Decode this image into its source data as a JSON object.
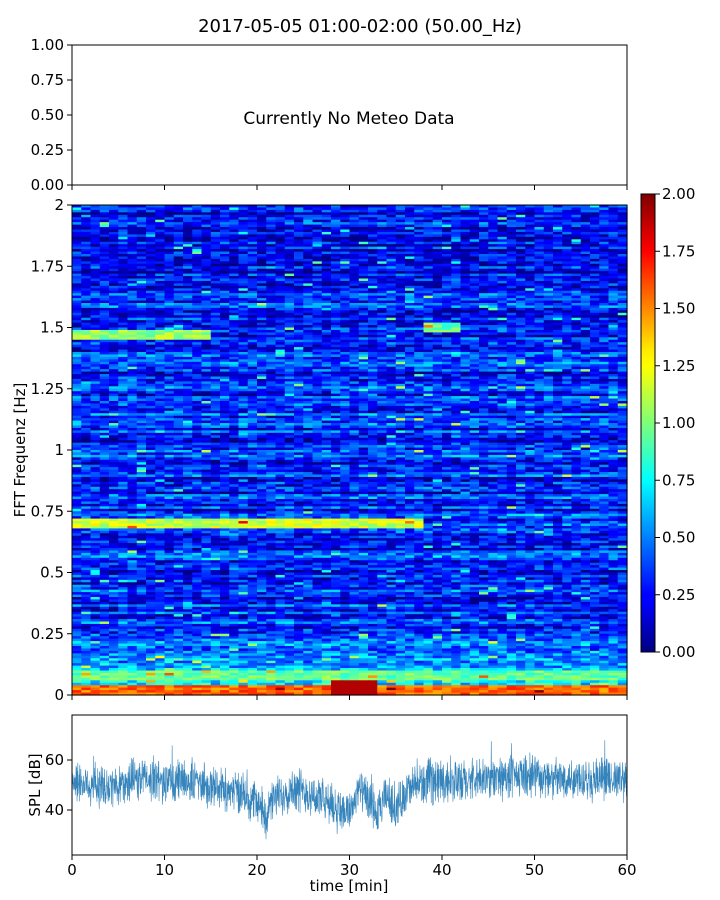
{
  "chart_data": [
    {
      "type": "text-panel",
      "title": "2017-05-05 01:00-02:00 (50.00_Hz)",
      "message": "Currently No Meteo Data",
      "ylim": [
        0,
        1
      ],
      "yticks": [
        "1.00",
        "0.75",
        "0.50",
        "0.25",
        "0.00"
      ],
      "xlim": [
        0,
        60
      ]
    },
    {
      "type": "heatmap",
      "ylabel": "FFT Frequenz [Hz]",
      "xlim": [
        0,
        60
      ],
      "ylim": [
        0,
        2
      ],
      "yticks": [
        "2",
        "1.75",
        "1.5",
        "1.25",
        "1",
        "0.75",
        "0.5",
        "0.25",
        "0"
      ],
      "colormap": "jet",
      "colorbar_range": [
        0,
        2
      ],
      "colorbar_ticks": [
        "2.00",
        "1.75",
        "1.50",
        "1.25",
        "1.00",
        "0.75",
        "0.50",
        "0.25",
        "0.00"
      ],
      "features": [
        {
          "freq_hz": 0.02,
          "t_start": 0,
          "t_end": 60,
          "level": 1.7
        },
        {
          "freq_hz": 0.08,
          "t_start": 0,
          "t_end": 60,
          "level": 1.1
        },
        {
          "freq_hz": 0.7,
          "t_start": 0,
          "t_end": 38,
          "level": 1.3
        },
        {
          "freq_hz": 1.47,
          "t_start": 0,
          "t_end": 15,
          "level": 1.2
        },
        {
          "freq_hz": 1.5,
          "t_start": 38,
          "t_end": 42,
          "level": 1.1
        }
      ]
    },
    {
      "type": "line",
      "xlabel": "time [min]",
      "ylabel": "SPL [dB]",
      "xlim": [
        0,
        60
      ],
      "ylim": [
        22,
        78
      ],
      "xticks": [
        "0",
        "10",
        "20",
        "30",
        "40",
        "50",
        "60"
      ],
      "yticks": [
        "60",
        "40"
      ],
      "color": "#1f77b4",
      "x": [
        0,
        2,
        4,
        6,
        8,
        10,
        12,
        14,
        16,
        18,
        20,
        21,
        22,
        24,
        26,
        28,
        30,
        31,
        32,
        33,
        34,
        35,
        36,
        38,
        40,
        42,
        44,
        46,
        48,
        50,
        52,
        54,
        56,
        58,
        60
      ],
      "y": [
        52,
        50,
        49,
        51,
        53,
        51,
        52,
        51,
        49,
        47,
        43,
        38,
        45,
        49,
        46,
        42,
        39,
        48,
        44,
        37,
        46,
        40,
        47,
        51,
        52,
        51,
        52,
        53,
        53,
        54,
        52,
        53,
        53,
        52,
        52
      ]
    }
  ],
  "colors": {
    "axis": "#000000",
    "line": "#1f77b4",
    "background": "#ffffff"
  }
}
